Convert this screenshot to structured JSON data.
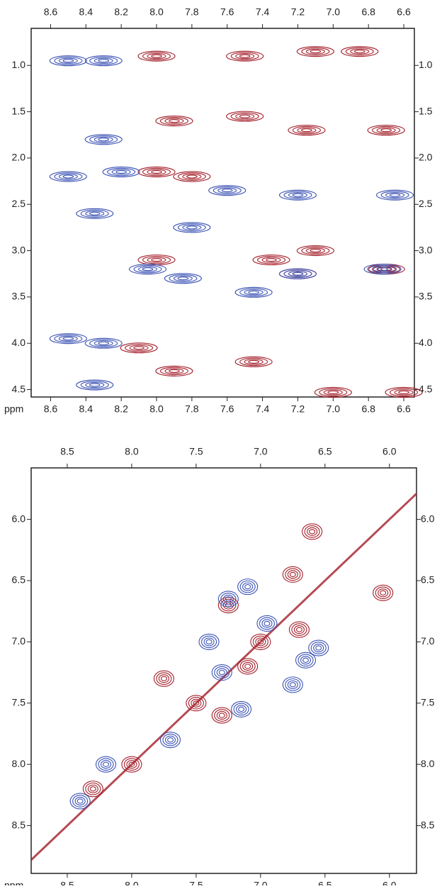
{
  "chart_data": [
    {
      "type": "contour",
      "x_label": "ppm",
      "xlim": [
        8.71,
        6.54
      ],
      "ylim": [
        4.58,
        0.6
      ],
      "xticks": [
        8.6,
        8.4,
        8.2,
        {
          "value": 8,
          "label": "8.0"
        },
        7.8,
        7.6,
        7.4,
        7.2,
        {
          "value": 7,
          "label": "7.0"
        },
        6.8,
        6.6
      ],
      "yticks": [
        {
          "value": 1,
          "label": "1.0"
        },
        1.5,
        {
          "value": 2,
          "label": "2.0"
        },
        2.5,
        {
          "value": 3,
          "label": "3.0"
        },
        3.5,
        {
          "value": 4,
          "label": "4.0"
        },
        4.5
      ],
      "series": [
        {
          "color": "#a31f2a",
          "x": [
            8.0,
            7.5,
            7.1,
            6.85,
            7.9,
            7.5,
            7.15,
            6.7,
            8.0,
            7.8,
            8.0,
            7.2,
            7.1,
            6.7,
            7.35,
            8.1,
            7.9,
            7.45,
            7.0,
            6.6
          ],
          "y": [
            0.9,
            0.9,
            0.85,
            0.85,
            1.6,
            1.55,
            1.7,
            1.7,
            2.15,
            2.2,
            3.1,
            3.25,
            3.0,
            3.2,
            3.1,
            4.05,
            4.3,
            4.2,
            4.53,
            4.53
          ]
        },
        {
          "color": "#3b52b4",
          "x": [
            8.3,
            8.5,
            8.3,
            8.2,
            8.5,
            8.05,
            7.85,
            7.45,
            7.2,
            6.72,
            8.3,
            8.35,
            8.5,
            7.8,
            7.6,
            7.2,
            6.65,
            8.35
          ],
          "y": [
            0.95,
            0.95,
            1.8,
            2.15,
            2.2,
            3.2,
            3.3,
            3.45,
            3.25,
            3.2,
            4.0,
            4.45,
            3.95,
            2.75,
            2.35,
            2.4,
            2.4,
            2.6
          ]
        }
      ]
    },
    {
      "type": "contour",
      "x_label": "ppm",
      "xlim": [
        8.78,
        5.79
      ],
      "ylim": [
        8.89,
        5.58
      ],
      "xticks": [
        8.5,
        {
          "value": 8,
          "label": "8.0"
        },
        7.5,
        {
          "value": 7,
          "label": "7.0"
        },
        6.5,
        {
          "value": 6,
          "label": "6.0"
        }
      ],
      "yticks": [
        {
          "value": 6,
          "label": "6.0"
        },
        6.5,
        {
          "value": 7,
          "label": "7.0"
        },
        7.5,
        {
          "value": 8,
          "label": "8.0"
        },
        8.5
      ],
      "series": [
        {
          "color": "#a31f2a",
          "x": [
            6.6,
            6.05,
            6.75,
            7.25,
            7.1,
            7.75,
            7.5,
            7.0,
            8.0,
            8.3,
            7.3,
            6.7
          ],
          "y": [
            6.1,
            6.6,
            6.45,
            6.7,
            7.2,
            7.3,
            7.5,
            7.0,
            8.0,
            8.2,
            7.6,
            6.9
          ]
        },
        {
          "color": "#3b52b4",
          "x": [
            7.25,
            7.1,
            6.95,
            7.4,
            7.3,
            6.75,
            6.55,
            6.65,
            7.15,
            8.2,
            8.4,
            7.7
          ],
          "y": [
            6.65,
            6.55,
            6.85,
            7.0,
            7.25,
            7.35,
            7.05,
            7.15,
            7.55,
            8.0,
            8.3,
            7.8
          ]
        }
      ]
    }
  ]
}
